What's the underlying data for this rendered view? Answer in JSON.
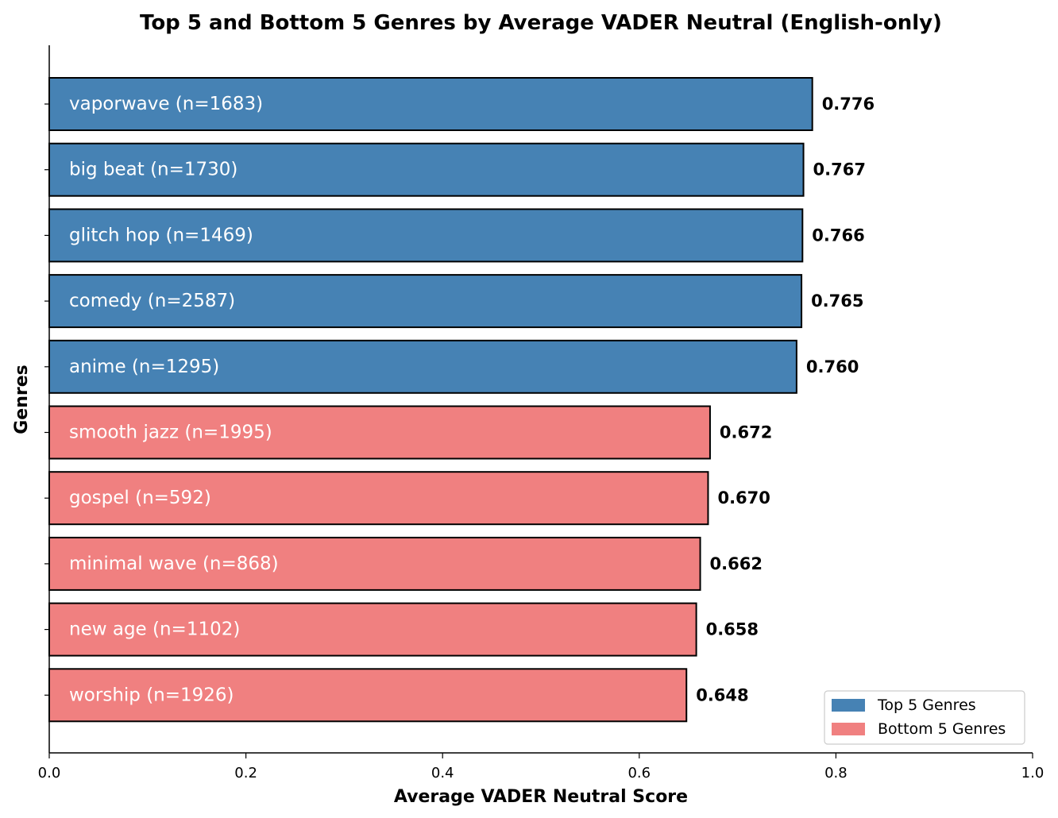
{
  "chart_data": {
    "type": "bar",
    "orientation": "horizontal",
    "title": "Top 5 and Bottom 5 Genres by Average VADER Neutral (English-only)",
    "xlabel": "Average VADER Neutral Score",
    "ylabel": "Genres",
    "xlim": [
      0.0,
      1.0
    ],
    "x_ticks": [
      "0.0",
      "0.2",
      "0.4",
      "0.6",
      "0.8",
      "1.0"
    ],
    "grid": false,
    "legend_position": "bottom-right",
    "categories": [
      "vaporwave (n=1683)",
      "big beat (n=1730)",
      "glitch hop (n=1469)",
      "comedy (n=2587)",
      "anime (n=1295)",
      "smooth jazz (n=1995)",
      "gospel (n=592)",
      "minimal wave (n=868)",
      "new age (n=1102)",
      "worship (n=1926)"
    ],
    "values": [
      0.776,
      0.767,
      0.766,
      0.765,
      0.76,
      0.672,
      0.67,
      0.662,
      0.658,
      0.648
    ],
    "value_labels": [
      "0.776",
      "0.767",
      "0.766",
      "0.765",
      "0.760",
      "0.672",
      "0.670",
      "0.662",
      "0.658",
      "0.648"
    ],
    "groups": [
      "top",
      "top",
      "top",
      "top",
      "top",
      "bottom",
      "bottom",
      "bottom",
      "bottom",
      "bottom"
    ],
    "series": [
      {
        "name": "Top 5 Genres",
        "key": "top",
        "color": "#4682b4"
      },
      {
        "name": "Bottom 5 Genres",
        "key": "bottom",
        "color": "#f08080"
      }
    ]
  }
}
